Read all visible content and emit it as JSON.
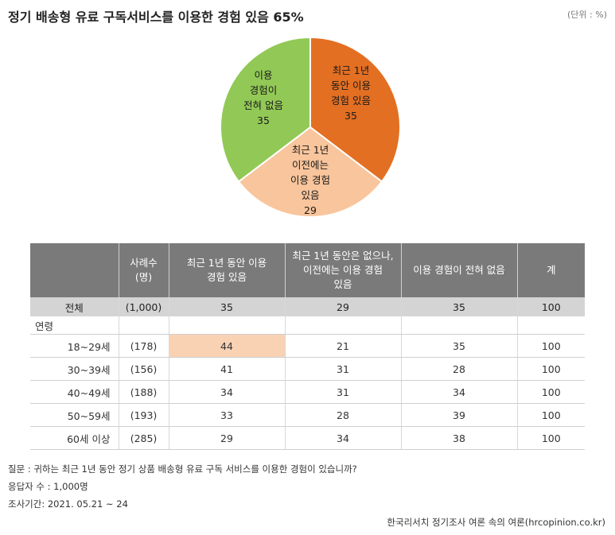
{
  "title": "정기 배송형 유료 구독서비스를 이용한 경험 있음 65%",
  "unit": "(단위 : %)",
  "chart_data": {
    "type": "pie",
    "slices": [
      {
        "label_lines": [
          "최근 1년",
          "동안 이용",
          "경험 있음"
        ],
        "value": 35,
        "color": "#e36f22"
      },
      {
        "label_lines": [
          "최근 1년",
          "이전에는",
          "이용 경험",
          "있음"
        ],
        "value": 29,
        "color": "#f9c59c"
      },
      {
        "label_lines": [
          "이용",
          "경험이",
          "전혀 없음"
        ],
        "value": 35,
        "color": "#92c956"
      }
    ]
  },
  "table": {
    "headers": [
      "",
      "사례수\n(명)",
      "최근 1년 동안 이용\n경험 있음",
      "최근 1년 동안은 없으나,\n이전에는 이용 경험\n있음",
      "이용 경험이 전혀 없음",
      "계"
    ],
    "total": {
      "label": "전체",
      "n": "(1,000)",
      "values": [
        "35",
        "29",
        "35",
        "100"
      ]
    },
    "group_label": "연령",
    "rows": [
      {
        "label": "18~29세",
        "n": "(178)",
        "values": [
          "44",
          "21",
          "35",
          "100"
        ],
        "highlight": true
      },
      {
        "label": "30~39세",
        "n": "(156)",
        "values": [
          "41",
          "31",
          "28",
          "100"
        ],
        "highlight": false
      },
      {
        "label": "40~49세",
        "n": "(188)",
        "values": [
          "34",
          "31",
          "34",
          "100"
        ],
        "highlight": false
      },
      {
        "label": "50~59세",
        "n": "(193)",
        "values": [
          "33",
          "28",
          "39",
          "100"
        ],
        "highlight": false
      },
      {
        "label": "60세 이상",
        "n": "(285)",
        "values": [
          "29",
          "34",
          "38",
          "100"
        ],
        "highlight": false
      }
    ]
  },
  "notes": {
    "question": "질문 :  귀하는 최근 1년 동안 정기 상품 배송형 유료 구독 서비스를 이용한 경험이 있습니까?",
    "respondents": "응답자 수 : 1,000명",
    "period": "조사기간: 2021. 05.21 ~ 24",
    "source": "한국리서치 정기조사 여론 속의 여론(hrcopinion.co.kr)"
  }
}
